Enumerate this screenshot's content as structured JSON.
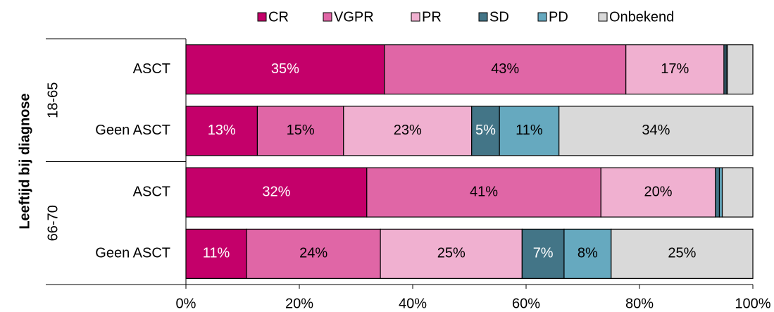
{
  "chart_data": {
    "type": "stacked_barh",
    "y_axis_title": "Leeftijd bij diagnose",
    "groups": [
      {
        "label": "18-65",
        "rows": [
          0,
          1
        ]
      },
      {
        "label": "66-70",
        "rows": [
          2,
          3
        ]
      }
    ],
    "categories": [
      "ASCT",
      "Geen ASCT",
      "ASCT",
      "Geen ASCT"
    ],
    "series": [
      {
        "name": "CR",
        "color": "#c4006a",
        "label_color": "#ffffff",
        "values": [
          35,
          12.6,
          31.9,
          10.7
        ],
        "value_labels": [
          "35%",
          "13%",
          "32%",
          "11%"
        ]
      },
      {
        "name": "VGPR",
        "color": "#e066a6",
        "label_color": "#000000",
        "values": [
          42.6,
          15.2,
          41.3,
          23.6
        ],
        "value_labels": [
          "43%",
          "15%",
          "41%",
          "24%"
        ]
      },
      {
        "name": "PR",
        "color": "#f0b0d0",
        "label_color": "#000000",
        "values": [
          17.3,
          22.6,
          20.2,
          25.0
        ],
        "value_labels": [
          "17%",
          "23%",
          "20%",
          "25%"
        ]
      },
      {
        "name": "SD",
        "color": "#437587",
        "label_color": "#ffffff",
        "values": [
          0.4,
          4.9,
          0.7,
          7.4
        ],
        "value_labels": [
          null,
          "5%",
          null,
          "7%"
        ]
      },
      {
        "name": "PD",
        "color": "#66a9bf",
        "label_color": "#000000",
        "values": [
          0.2,
          10.5,
          0.5,
          8.3
        ],
        "value_labels": [
          null,
          "11%",
          null,
          "8%"
        ]
      },
      {
        "name": "Onbekend",
        "color": "#d9d9d9",
        "label_color": "#000000",
        "values": [
          4.5,
          34.2,
          5.4,
          25.0
        ],
        "value_labels": [
          null,
          "34%",
          null,
          "25%"
        ]
      }
    ],
    "xlim": [
      0,
      100
    ],
    "xticks": [
      {
        "value": 0,
        "label": "0%"
      },
      {
        "value": 20,
        "label": "20%"
      },
      {
        "value": 40,
        "label": "40%"
      },
      {
        "value": 60,
        "label": "60%"
      },
      {
        "value": 80,
        "label": "80%"
      },
      {
        "value": 100,
        "label": "100%"
      }
    ],
    "legend": "top"
  }
}
